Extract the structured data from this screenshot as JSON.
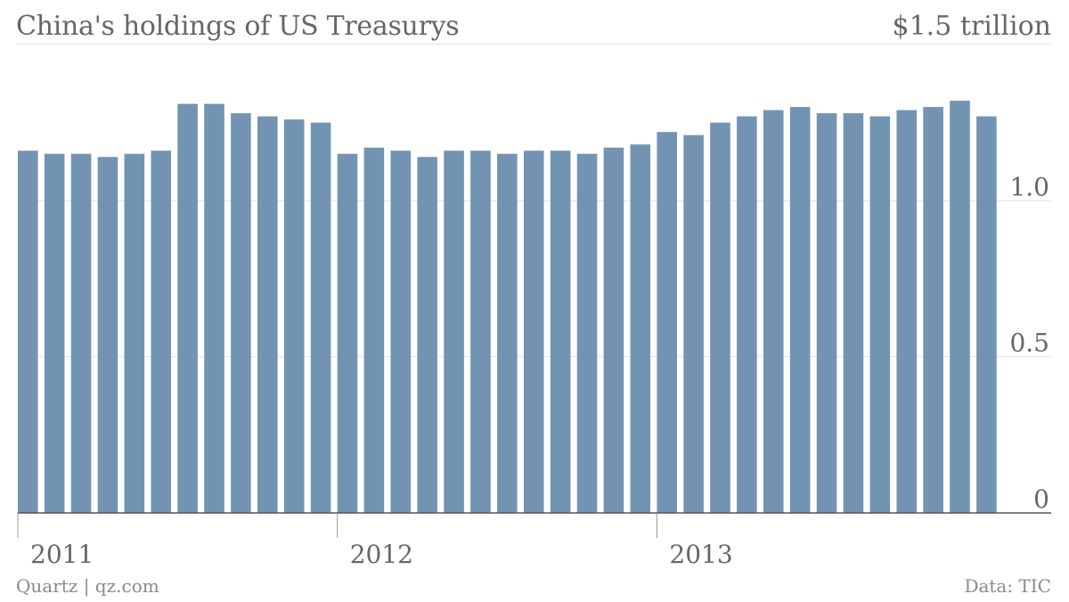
{
  "header": {
    "title": "China's holdings of US Treasurys",
    "top_label": "$1.5 trillion"
  },
  "footer": {
    "source": "Quartz | qz.com",
    "data_credit": "Data: TIC"
  },
  "colors": {
    "bar": "#7393b3",
    "grid": "#e3e3e3",
    "axis": "#555555",
    "text": "#666666"
  },
  "chart_data": {
    "type": "bar",
    "title": "China's holdings of US Treasurys",
    "unit_label": "$1.5 trillion",
    "xlabel": "",
    "ylabel": "",
    "ylim": [
      0,
      1.5
    ],
    "y_ticks": [
      {
        "value": 0,
        "label": "0"
      },
      {
        "value": 0.5,
        "label": "0.5"
      },
      {
        "value": 1.0,
        "label": "1.0"
      }
    ],
    "x_ticks": [
      {
        "label": "2011",
        "index": 0
      },
      {
        "label": "2012",
        "index": 12
      },
      {
        "label": "2013",
        "index": 24
      }
    ],
    "grid": true,
    "values": [
      1.16,
      1.15,
      1.15,
      1.14,
      1.15,
      1.16,
      1.31,
      1.31,
      1.28,
      1.27,
      1.26,
      1.25,
      1.15,
      1.17,
      1.16,
      1.14,
      1.16,
      1.16,
      1.15,
      1.16,
      1.16,
      1.15,
      1.17,
      1.18,
      1.22,
      1.21,
      1.25,
      1.27,
      1.29,
      1.3,
      1.28,
      1.28,
      1.27,
      1.29,
      1.3,
      1.32,
      1.27
    ]
  }
}
